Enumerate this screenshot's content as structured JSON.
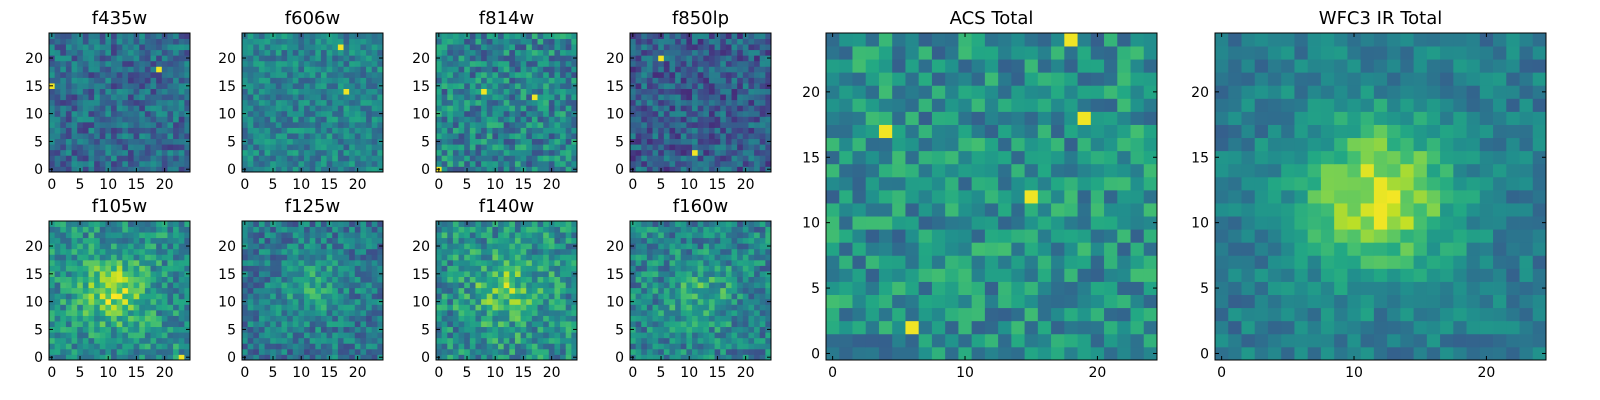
{
  "figure": {
    "description_free": true
  },
  "chart_data": [
    {
      "type": "heatmap",
      "title": "f435w",
      "xlim": [
        0,
        24
      ],
      "ylim": [
        0,
        24
      ],
      "xticks": [
        0,
        5,
        10,
        15,
        20
      ],
      "yticks": [
        0,
        5,
        10,
        15,
        20
      ],
      "colormap": "viridis",
      "grid": false,
      "seed": 11,
      "base": 0.35,
      "noise": 0.18,
      "blob": null,
      "hot": [
        [
          0,
          15
        ],
        [
          19,
          18
        ]
      ]
    },
    {
      "type": "heatmap",
      "title": "f606w",
      "xlim": [
        0,
        24
      ],
      "ylim": [
        0,
        24
      ],
      "xticks": [
        0,
        5,
        10,
        15,
        20
      ],
      "yticks": [
        0,
        5,
        10,
        15,
        20
      ],
      "colormap": "viridis",
      "grid": false,
      "seed": 23,
      "base": 0.45,
      "noise": 0.16,
      "blob": null,
      "hot": [
        [
          17,
          22
        ],
        [
          18,
          14
        ]
      ]
    },
    {
      "type": "heatmap",
      "title": "f814w",
      "xlim": [
        0,
        24
      ],
      "ylim": [
        0,
        24
      ],
      "xticks": [
        0,
        5,
        10,
        15,
        20
      ],
      "yticks": [
        0,
        5,
        10,
        15,
        20
      ],
      "colormap": "viridis",
      "grid": false,
      "seed": 37,
      "base": 0.45,
      "noise": 0.22,
      "blob": null,
      "hot": [
        [
          0,
          0
        ],
        [
          17,
          13
        ],
        [
          8,
          14
        ]
      ]
    },
    {
      "type": "heatmap",
      "title": "f850lp",
      "xlim": [
        0,
        24
      ],
      "ylim": [
        0,
        24
      ],
      "xticks": [
        0,
        5,
        10,
        15,
        20
      ],
      "yticks": [
        0,
        5,
        10,
        15,
        20
      ],
      "colormap": "viridis",
      "grid": false,
      "seed": 41,
      "base": 0.3,
      "noise": 0.18,
      "blob": null,
      "hot": [
        [
          11,
          3
        ],
        [
          5,
          20
        ]
      ]
    },
    {
      "type": "heatmap",
      "title": "f105w",
      "xlim": [
        0,
        24
      ],
      "ylim": [
        0,
        24
      ],
      "xticks": [
        0,
        5,
        10,
        15,
        20
      ],
      "yticks": [
        0,
        5,
        10,
        15,
        20
      ],
      "colormap": "viridis",
      "grid": false,
      "seed": 53,
      "base": 0.5,
      "noise": 0.2,
      "blob": [
        11,
        12,
        4,
        0.35
      ],
      "hot": [
        [
          23,
          0
        ]
      ]
    },
    {
      "type": "heatmap",
      "title": "f125w",
      "xlim": [
        0,
        24
      ],
      "ylim": [
        0,
        24
      ],
      "xticks": [
        0,
        5,
        10,
        15,
        20
      ],
      "yticks": [
        0,
        5,
        10,
        15,
        20
      ],
      "colormap": "viridis",
      "grid": false,
      "seed": 67,
      "base": 0.4,
      "noise": 0.18,
      "blob": [
        12,
        13,
        4,
        0.2
      ],
      "hot": []
    },
    {
      "type": "heatmap",
      "title": "f140w",
      "xlim": [
        0,
        24
      ],
      "ylim": [
        0,
        24
      ],
      "xticks": [
        0,
        5,
        10,
        15,
        20
      ],
      "yticks": [
        0,
        5,
        10,
        15,
        20
      ],
      "colormap": "viridis",
      "grid": false,
      "seed": 79,
      "base": 0.5,
      "noise": 0.22,
      "blob": [
        12,
        12,
        4,
        0.25
      ],
      "hot": []
    },
    {
      "type": "heatmap",
      "title": "f160w",
      "xlim": [
        0,
        24
      ],
      "ylim": [
        0,
        24
      ],
      "xticks": [
        0,
        5,
        10,
        15,
        20
      ],
      "yticks": [
        0,
        5,
        10,
        15,
        20
      ],
      "colormap": "viridis",
      "grid": false,
      "seed": 83,
      "base": 0.45,
      "noise": 0.2,
      "blob": [
        12,
        11,
        4,
        0.2
      ],
      "hot": []
    },
    {
      "type": "heatmap",
      "title": "ACS Total",
      "xlim": [
        0,
        24
      ],
      "ylim": [
        0,
        24
      ],
      "xticks": [
        0,
        10,
        20
      ],
      "yticks": [
        0,
        5,
        10,
        15,
        20
      ],
      "colormap": "viridis",
      "grid": false,
      "seed": 97,
      "base": 0.5,
      "noise": 0.2,
      "blob": null,
      "hot": [
        [
          4,
          17
        ],
        [
          6,
          2
        ],
        [
          15,
          12
        ],
        [
          18,
          24
        ],
        [
          19,
          18
        ]
      ]
    },
    {
      "type": "heatmap",
      "title": "WFC3 IR Total",
      "xlim": [
        0,
        24
      ],
      "ylim": [
        0,
        24
      ],
      "xticks": [
        0,
        10,
        20
      ],
      "yticks": [
        0,
        5,
        10,
        15,
        20
      ],
      "colormap": "viridis",
      "grid": false,
      "seed": 101,
      "base": 0.42,
      "noise": 0.12,
      "blob": [
        12,
        12,
        4,
        0.5
      ],
      "hot": [
        [
          12,
          10
        ],
        [
          12,
          11
        ]
      ]
    }
  ]
}
